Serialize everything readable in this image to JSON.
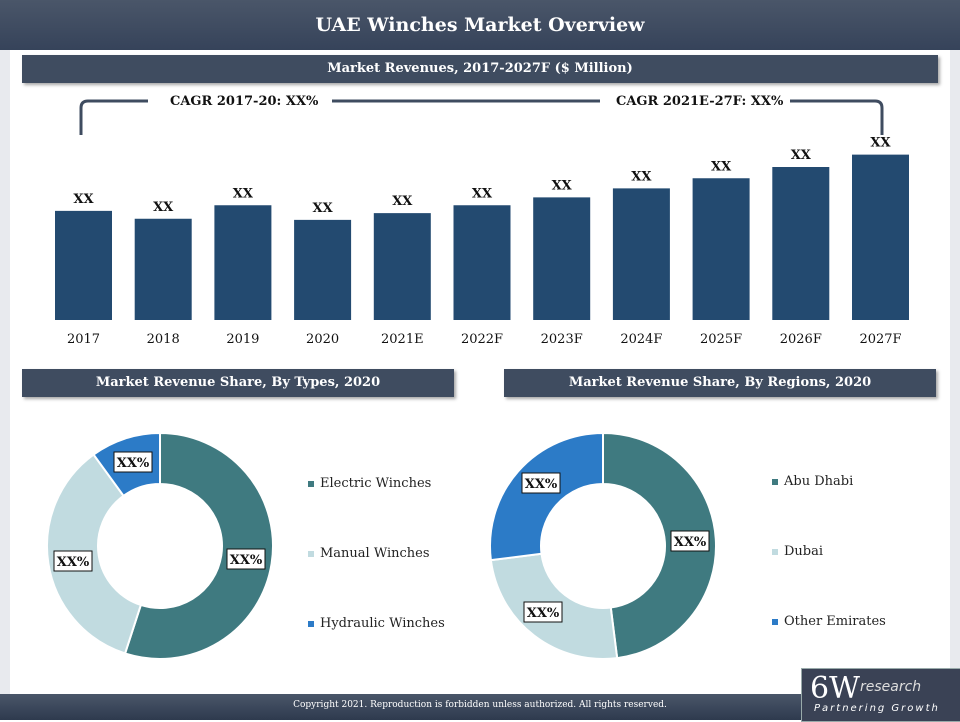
{
  "page": {
    "title": "UAE Winches Market Overview",
    "footer": "Copyright 2021. Reproduction is forbidden unless authorized. All rights reserved.",
    "logo_main": "6W",
    "logo_sub": "research",
    "logo_tag": "Partnering Growth"
  },
  "revenue_section": {
    "header": "Market Revenues, 2017-2027F ($ Million)",
    "cagr_left": "CAGR 2017-20: XX%",
    "cagr_right": "CAGR 2021E-27F: XX%"
  },
  "types_section": {
    "header": "Market Revenue Share, By Types, 2020"
  },
  "regions_section": {
    "header": "Market Revenue Share, By Regions, 2020"
  },
  "colors": {
    "bar": "#234a70",
    "teal": "#3f7a80",
    "light": "#c1dbe0",
    "blue": "#2c7bc7"
  },
  "chart_data": [
    {
      "type": "bar",
      "title": "Market Revenues, 2017-2027F ($ Million)",
      "categories": [
        "2017",
        "2018",
        "2019",
        "2020",
        "2021E",
        "2022F",
        "2023F",
        "2024F",
        "2025F",
        "2026F",
        "2027F"
      ],
      "values": [
        97,
        90,
        102,
        89,
        95,
        102,
        109,
        117,
        126,
        136,
        147
      ],
      "data_labels": [
        "XX",
        "XX",
        "XX",
        "XX",
        "XX",
        "XX",
        "XX",
        "XX",
        "XX",
        "XX",
        "XX"
      ],
      "ylim": [
        0,
        160
      ],
      "xlabel": "",
      "ylabel": ""
    },
    {
      "type": "pie",
      "title": "Market Revenue Share, By Types, 2020",
      "labels": [
        "Electric Winches",
        "Manual Winches",
        "Hydraulic Winches"
      ],
      "values": [
        55,
        35,
        10
      ],
      "data_labels": [
        "XX%",
        "XX%",
        "XX%"
      ],
      "colors": [
        "#3f7a80",
        "#c1dbe0",
        "#2c7bc7"
      ],
      "legend": "right"
    },
    {
      "type": "pie",
      "title": "Market Revenue Share, By Regions, 2020",
      "labels": [
        "Abu Dhabi",
        "Dubai",
        "Other Emirates"
      ],
      "values": [
        48,
        25,
        27
      ],
      "data_labels": [
        "XX%",
        "XX%",
        "XX%"
      ],
      "colors": [
        "#3f7a80",
        "#c1dbe0",
        "#2c7bc7"
      ],
      "legend": "right"
    }
  ]
}
